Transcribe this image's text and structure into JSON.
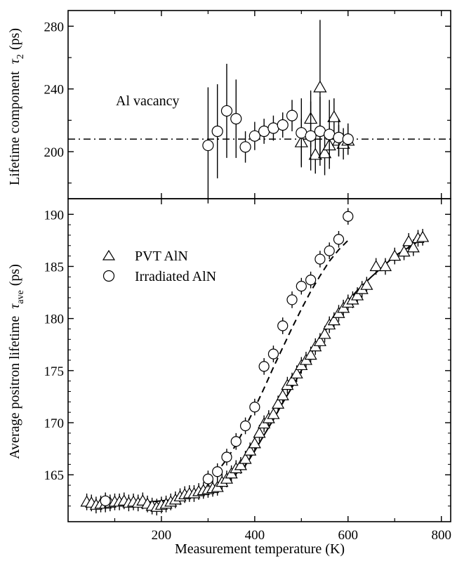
{
  "chart_data": [
    {
      "type": "scatter",
      "panel": "top",
      "ylabel": "Lifetime component",
      "ylabel_symbol": "τ",
      "ylabel_sub": "2",
      "ylabel_unit": "(ps)",
      "xlim": [
        0,
        820
      ],
      "ylim": [
        170,
        290
      ],
      "ytick_values": [
        200,
        240,
        280
      ],
      "ytick_labels": [
        "200",
        "240",
        "280"
      ],
      "grid": false,
      "reference_line": {
        "y": 208,
        "style": "dash-dot",
        "label": "Al vacancy"
      },
      "series": [
        {
          "name": "Irradiated AlN",
          "marker": "circle",
          "x": [
            300,
            320,
            340,
            360,
            380,
            400,
            420,
            440,
            460,
            480,
            500,
            520,
            540,
            560,
            580,
            600
          ],
          "y": [
            204,
            213,
            226,
            221,
            203,
            210,
            213,
            215,
            217,
            223,
            212,
            210,
            213,
            211,
            209,
            208
          ],
          "err": [
            37,
            30,
            30,
            25,
            10,
            9,
            8,
            8,
            8,
            10,
            22,
            22,
            22,
            22,
            12,
            10
          ]
        },
        {
          "name": "PVT AlN",
          "marker": "triangle",
          "x": [
            500,
            520,
            530,
            540,
            550,
            560,
            570,
            580,
            590,
            600
          ],
          "y": [
            206,
            221,
            198,
            241,
            199,
            204,
            222,
            207,
            205,
            207
          ],
          "err": [
            15,
            18,
            12,
            43,
            14,
            12,
            12,
            10,
            10,
            9
          ]
        }
      ]
    },
    {
      "type": "scatter",
      "panel": "bottom",
      "xlabel": "Measurement temperature (K)",
      "ylabel": "Average positron lifetime",
      "ylabel_symbol": "τ",
      "ylabel_sub": "ave",
      "ylabel_unit": "(ps)",
      "xlim": [
        0,
        820
      ],
      "ylim": [
        160.5,
        191.5
      ],
      "xtick_values": [
        200,
        400,
        600,
        800
      ],
      "xtick_labels": [
        "200",
        "400",
        "600",
        "800"
      ],
      "ytick_values": [
        165,
        170,
        175,
        180,
        185,
        190
      ],
      "ytick_labels": [
        "165",
        "170",
        "175",
        "180",
        "185",
        "190"
      ],
      "grid": false,
      "legend": {
        "placement": "top-left"
      },
      "series": [
        {
          "name": "PVT AlN",
          "marker": "triangle",
          "x": [
            40,
            50,
            60,
            70,
            80,
            90,
            100,
            110,
            120,
            130,
            140,
            150,
            160,
            170,
            180,
            190,
            200,
            210,
            220,
            230,
            240,
            250,
            260,
            270,
            280,
            290,
            300,
            310,
            320,
            330,
            340,
            350,
            360,
            370,
            380,
            390,
            400,
            410,
            420,
            430,
            440,
            450,
            460,
            470,
            480,
            490,
            500,
            510,
            520,
            530,
            540,
            550,
            560,
            570,
            580,
            590,
            600,
            610,
            620,
            630,
            640,
            660,
            680,
            700,
            720,
            730,
            740,
            750,
            760
          ],
          "y": [
            162.4,
            162.3,
            162.1,
            162.2,
            162.2,
            162.3,
            162.4,
            162.4,
            162.5,
            162.3,
            162.4,
            162.3,
            162.5,
            162.2,
            162.0,
            161.9,
            162.1,
            162.2,
            162.4,
            162.6,
            162.9,
            163.1,
            163.2,
            163.2,
            163.4,
            163.5,
            163.6,
            163.7,
            163.8,
            164.3,
            164.6,
            165.1,
            165.6,
            165.9,
            166.5,
            167.3,
            168.0,
            169.0,
            169.9,
            170.4,
            170.8,
            171.8,
            172.6,
            173.6,
            174.0,
            174.7,
            175.5,
            176.0,
            176.5,
            177.3,
            177.8,
            178.5,
            179.4,
            179.8,
            180.5,
            181.0,
            181.5,
            181.8,
            182.2,
            182.8,
            183.2,
            185.0,
            185.0,
            186.0,
            186.4,
            187.4,
            186.8,
            187.7,
            187.8
          ],
          "err": [
            0.8,
            0.8,
            0.8,
            0.8,
            0.8,
            0.8,
            0.8,
            0.8,
            0.8,
            0.8,
            0.8,
            0.8,
            0.8,
            0.8,
            0.8,
            0.8,
            0.8,
            0.8,
            0.8,
            0.8,
            0.8,
            0.8,
            0.8,
            0.8,
            0.8,
            0.8,
            0.8,
            0.8,
            0.8,
            0.8,
            0.8,
            0.8,
            0.8,
            0.8,
            0.8,
            0.8,
            0.8,
            0.8,
            0.8,
            0.8,
            0.8,
            0.8,
            0.8,
            0.8,
            0.8,
            0.8,
            0.8,
            0.8,
            0.8,
            0.8,
            0.8,
            0.8,
            0.8,
            0.8,
            0.8,
            0.8,
            0.8,
            0.8,
            0.8,
            0.8,
            0.8,
            0.8,
            0.8,
            0.8,
            0.8,
            0.8,
            0.8,
            0.8,
            0.8
          ]
        },
        {
          "name": "Irradiated AlN",
          "marker": "circle",
          "x": [
            80,
            300,
            320,
            340,
            360,
            380,
            400,
            420,
            440,
            460,
            480,
            500,
            520,
            540,
            560,
            580,
            600
          ],
          "y": [
            162.5,
            164.6,
            165.3,
            166.7,
            168.2,
            169.7,
            171.5,
            175.4,
            176.6,
            179.3,
            181.8,
            183.1,
            183.7,
            185.7,
            186.5,
            187.6,
            189.8
          ],
          "err": [
            0.8,
            0.8,
            0.8,
            0.8,
            0.8,
            0.8,
            0.8,
            0.8,
            0.8,
            0.8,
            0.8,
            0.8,
            0.8,
            0.8,
            0.8,
            0.8,
            0.8
          ]
        }
      ],
      "fits": [
        {
          "for": "PVT AlN",
          "style": "solid",
          "x": [
            40,
            150,
            250,
            300,
            340,
            380,
            400,
            420,
            440,
            460,
            480,
            500,
            520,
            540,
            560,
            580,
            600,
            620,
            650,
            700,
            740,
            760
          ],
          "y": [
            162.3,
            162.3,
            162.7,
            163.3,
            164.3,
            165.9,
            167.3,
            168.8,
            170.3,
            171.9,
            173.4,
            175.0,
            176.6,
            178.1,
            179.4,
            180.6,
            181.7,
            182.7,
            184.0,
            186.0,
            187.1,
            187.7
          ]
        },
        {
          "for": "Irradiated AlN",
          "style": "dashed",
          "x": [
            300,
            320,
            340,
            360,
            380,
            400,
            420,
            440,
            460,
            480,
            500,
            520,
            540,
            560,
            580,
            600
          ],
          "y": [
            164.3,
            165.3,
            166.5,
            167.9,
            169.6,
            171.4,
            173.3,
            175.3,
            177.2,
            179.1,
            180.9,
            182.6,
            184.1,
            185.5,
            186.6,
            187.5
          ]
        }
      ]
    }
  ]
}
